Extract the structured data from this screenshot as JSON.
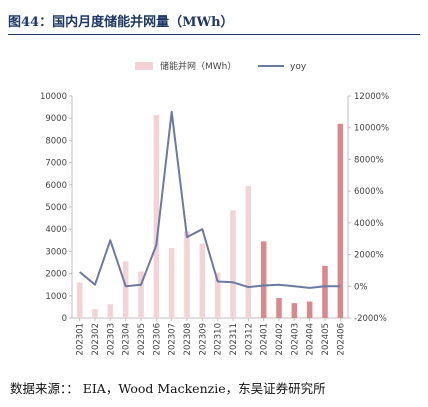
{
  "figure": {
    "title": "图44：国内月度储能并网量（MWh）",
    "source": "数据来源：：  EIA，Wood Mackenzie，东吴证券研究所"
  },
  "chart_data": {
    "type": "bar",
    "categories": [
      "202301",
      "202302",
      "202303",
      "202304",
      "202305",
      "202306",
      "202307",
      "202308",
      "202309",
      "202310",
      "202311",
      "202312",
      "202401",
      "202402",
      "202403",
      "202404",
      "202405",
      "202406"
    ],
    "series": [
      {
        "name": "储能并网（MWh）",
        "type": "bar",
        "axis": "left",
        "color": "#f2d4d6",
        "highlight_color": "#d9888e",
        "highlight_from_index": 12,
        "values": [
          1600,
          400,
          620,
          2550,
          2100,
          9150,
          3150,
          3900,
          3350,
          2050,
          4850,
          5950,
          3450,
          900,
          670,
          740,
          2350,
          8750
        ]
      },
      {
        "name": "yoy",
        "type": "line",
        "axis": "right",
        "color": "#6b7aa1",
        "values": [
          900,
          100,
          2900,
          0,
          100,
          2600,
          11000,
          3100,
          3600,
          300,
          250,
          -50,
          50,
          100,
          0,
          -100,
          0,
          0
        ]
      }
    ],
    "y_left": {
      "min": 0,
      "max": 10000,
      "step": 1000,
      "ticks": [
        "0",
        "1000",
        "2000",
        "3000",
        "4000",
        "5000",
        "6000",
        "7000",
        "8000",
        "9000",
        "10000"
      ]
    },
    "y_right": {
      "min": -2000,
      "max": 12000,
      "step": 2000,
      "ticks": [
        "-2000%",
        "0%",
        "2000%",
        "4000%",
        "6000%",
        "8000%",
        "10000%",
        "12000%"
      ]
    },
    "legend_position": "top",
    "grid": false
  }
}
